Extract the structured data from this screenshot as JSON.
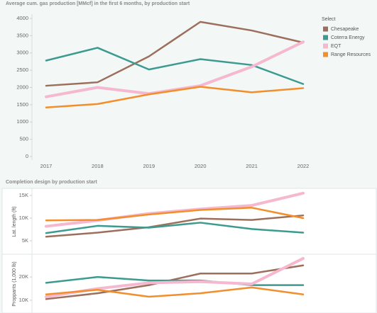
{
  "chart_data": [
    {
      "type": "line",
      "title": "Average cum. gas production [MMcf] in the first 6 months, by production start",
      "categories": [
        "2017",
        "2018",
        "2019",
        "2020",
        "2021",
        "2022"
      ],
      "ylim": [
        0,
        4000
      ],
      "yticks": [
        0,
        500,
        1000,
        1500,
        2000,
        2500,
        3000,
        3500,
        4000
      ],
      "grid": false,
      "legend_title": "Select",
      "legend": "right",
      "series": [
        {
          "name": "Chesapeake",
          "color": "#9c6f5c",
          "values": [
            2050,
            2150,
            2900,
            3900,
            3650,
            3300
          ]
        },
        {
          "name": "Coterra Energy",
          "color": "#3c9a8f",
          "values": [
            2780,
            3150,
            2520,
            2820,
            2650,
            2100
          ]
        },
        {
          "name": "EQT",
          "color": "#f6b8cf",
          "values": [
            1730,
            2000,
            1820,
            2050,
            2600,
            3320
          ]
        },
        {
          "name": "Range Resources",
          "color": "#f28e2b",
          "values": [
            1420,
            1520,
            1800,
            2020,
            1860,
            1980
          ]
        }
      ]
    },
    {
      "type": "line",
      "title": "Completion design by production start",
      "ylabel": "Lat. length (ft)",
      "ylim": [
        2200,
        16250
      ],
      "yticks": [
        {
          "value": 5000,
          "label": "5K"
        },
        {
          "value": 10000,
          "label": "10K"
        },
        {
          "value": 15000,
          "label": "15K"
        }
      ],
      "series": [
        {
          "color": "#9c6f5c",
          "values": [
            5900,
            6800,
            8000,
            9900,
            9600,
            10600
          ]
        },
        {
          "color": "#3c9a8f",
          "values": [
            6700,
            8300,
            7900,
            9000,
            7600,
            6800
          ]
        },
        {
          "color": "#f6b8cf",
          "values": [
            8200,
            9500,
            11000,
            12000,
            12800,
            15500
          ]
        },
        {
          "color": "#f28e2b",
          "values": [
            9500,
            9600,
            10800,
            11800,
            12300,
            10000
          ]
        }
      ]
    },
    {
      "type": "line",
      "ylabel": "Proppants (1,000 lb)",
      "ylim": [
        4500,
        29500
      ],
      "yticks": [
        {
          "value": 10000,
          "label": "10K"
        },
        {
          "value": 20000,
          "label": "20K"
        }
      ],
      "series": [
        {
          "color": "#9c6f5c",
          "values": [
            10500,
            13000,
            16500,
            21500,
            21500,
            25000
          ]
        },
        {
          "color": "#3c9a8f",
          "values": [
            17500,
            20000,
            18500,
            18500,
            16500,
            16500
          ]
        },
        {
          "color": "#f6b8cf",
          "values": [
            11500,
            15000,
            17500,
            18000,
            17000,
            28000
          ]
        },
        {
          "color": "#f28e2b",
          "values": [
            12500,
            14500,
            11500,
            13000,
            15500,
            12500
          ]
        }
      ]
    }
  ]
}
